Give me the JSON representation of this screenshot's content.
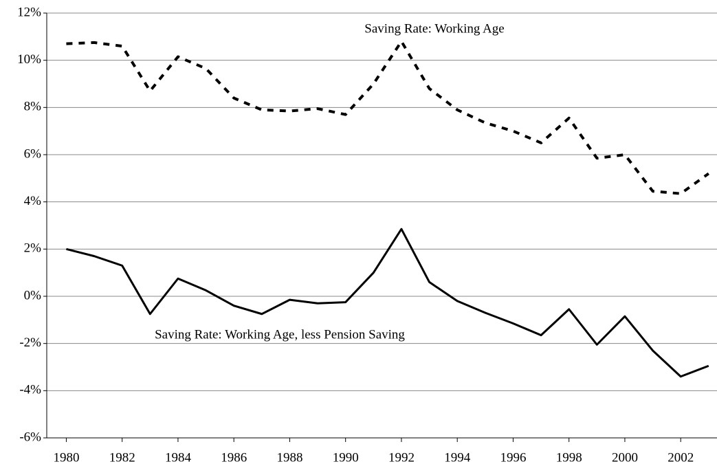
{
  "chart_data": {
    "type": "line",
    "x": [
      1980,
      1981,
      1982,
      1983,
      1984,
      1985,
      1986,
      1987,
      1988,
      1989,
      1990,
      1991,
      1992,
      1993,
      1994,
      1995,
      1996,
      1997,
      1998,
      1999,
      2000,
      2001,
      2002,
      2003
    ],
    "series": [
      {
        "name": "Saving Rate: Working Age",
        "color": "#000000",
        "dash": "dotted",
        "values": [
          10.7,
          10.75,
          10.6,
          8.7,
          10.15,
          9.65,
          8.4,
          7.9,
          7.85,
          7.95,
          7.7,
          9.0,
          10.8,
          8.8,
          7.9,
          7.35,
          7.0,
          6.5,
          7.55,
          5.85,
          6.0,
          4.45,
          4.35,
          5.2
        ]
      },
      {
        "name": "Saving Rate: Working Age, less Pension Saving",
        "color": "#000000",
        "dash": "solid",
        "values": [
          2.0,
          1.7,
          1.3,
          -0.75,
          0.75,
          0.25,
          -0.4,
          -0.75,
          -0.15,
          -0.3,
          -0.25,
          1.0,
          2.85,
          0.6,
          -0.2,
          -0.7,
          -1.15,
          -1.65,
          -0.55,
          -2.05,
          -0.85,
          -2.3,
          -3.4,
          -2.95
        ]
      }
    ],
    "xlim": [
      1979.3,
      2003.3
    ],
    "xticks": [
      1980,
      1982,
      1984,
      1986,
      1988,
      1990,
      1992,
      1994,
      1996,
      1998,
      2000,
      2002
    ],
    "ylim": [
      -6,
      12
    ],
    "yticks": [
      {
        "value": -6,
        "label": "-6%"
      },
      {
        "value": -4,
        "label": "-4%"
      },
      {
        "value": -2,
        "label": "-2%"
      },
      {
        "value": 0,
        "label": "0%"
      },
      {
        "value": 2,
        "label": "2%"
      },
      {
        "value": 4,
        "label": "4%"
      },
      {
        "value": 6,
        "label": "6%"
      },
      {
        "value": 8,
        "label": "8%"
      },
      {
        "value": 10,
        "label": "10%"
      },
      {
        "value": 12,
        "label": "12%"
      }
    ],
    "grid": true
  }
}
